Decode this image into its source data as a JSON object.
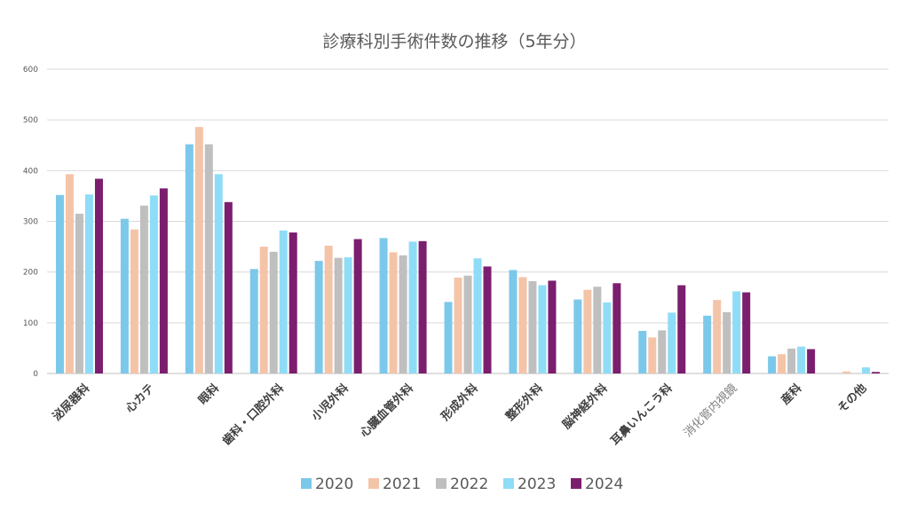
{
  "chart_data": {
    "type": "bar",
    "title": "診療科別手術件数の推移（5年分）",
    "xlabel": "",
    "ylabel": "",
    "ylim": [
      0,
      600
    ],
    "yticks": [
      0,
      100,
      200,
      300,
      400,
      500,
      600
    ],
    "grid": true,
    "legend_position": "bottom",
    "categories": [
      "泌尿器科",
      "心カテ",
      "眼科",
      "歯科・口腔外科",
      "小児外科",
      "心臓血管外科",
      "形成外科",
      "整形外科",
      "脳神経外科",
      "耳鼻いんこう科",
      "消化管内視鏡",
      "産科",
      "その他"
    ],
    "series": [
      {
        "name": "2020",
        "color": "#7cc8ea",
        "values": [
          352,
          305,
          452,
          206,
          222,
          267,
          141,
          204,
          146,
          84,
          114,
          34,
          0
        ]
      },
      {
        "name": "2021",
        "color": "#f4c4a8",
        "values": [
          393,
          284,
          486,
          250,
          252,
          239,
          189,
          190,
          165,
          71,
          145,
          38,
          4
        ]
      },
      {
        "name": "2022",
        "color": "#bfbfbf",
        "values": [
          315,
          331,
          452,
          240,
          228,
          233,
          193,
          182,
          171,
          85,
          121,
          49,
          0
        ]
      },
      {
        "name": "2023",
        "color": "#8fdcf7",
        "values": [
          353,
          351,
          393,
          282,
          229,
          260,
          227,
          174,
          140,
          120,
          162,
          53,
          12
        ]
      },
      {
        "name": "2024",
        "color": "#7b1e6e",
        "values": [
          384,
          365,
          338,
          278,
          265,
          261,
          211,
          183,
          178,
          174,
          160,
          48,
          3
        ]
      }
    ]
  }
}
